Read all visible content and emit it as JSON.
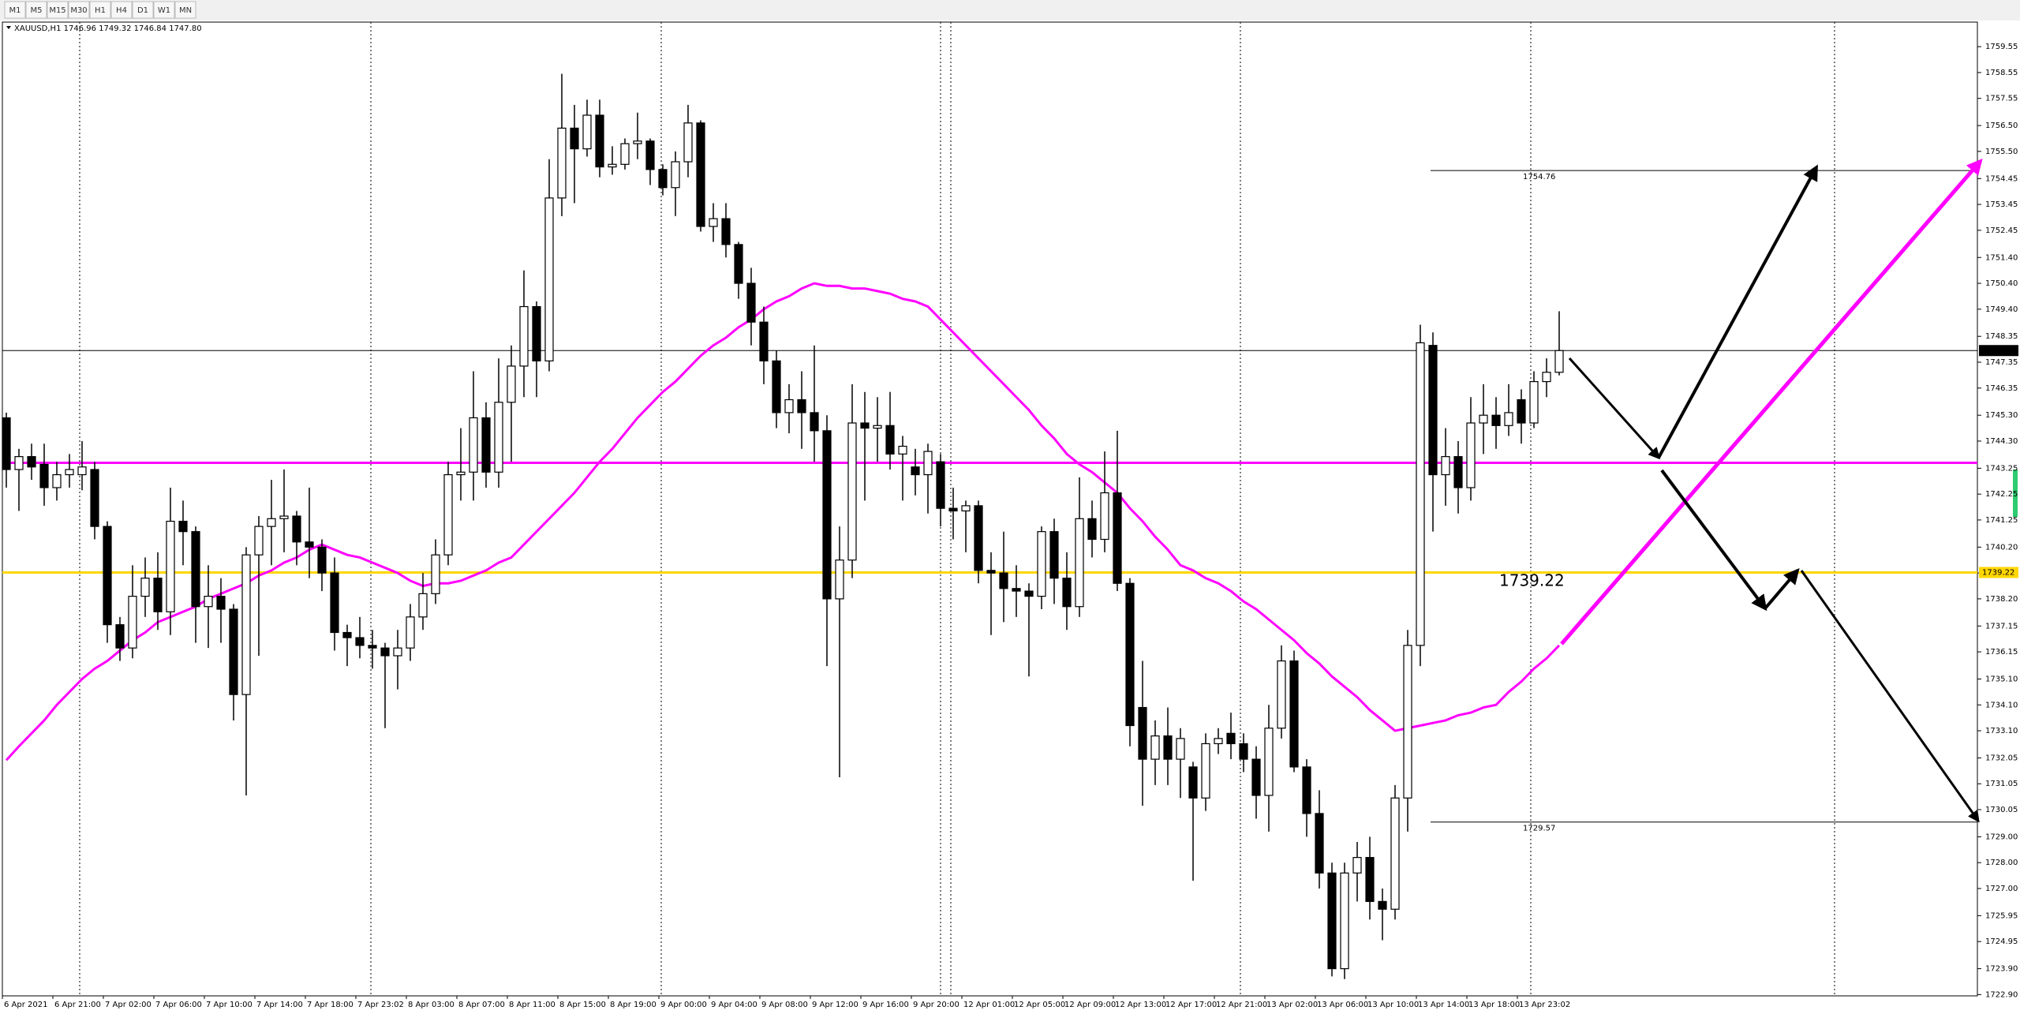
{
  "toolbar": [
    "M1",
    "M5",
    "M15",
    "M30",
    "H1",
    "H4",
    "D1",
    "W1",
    "MN"
  ],
  "chart_data": {
    "type": "candlestick",
    "title": "XAUUSD,H1  1746.96 1749.32 1746.84 1747.80",
    "up_color": "#ffffff",
    "down_color": "#000000",
    "categories": [
      "6 Apr 2021",
      null,
      null,
      null,
      "6 Apr 21:00",
      null,
      null,
      null,
      "7 Apr 02:00",
      null,
      null,
      null,
      "7 Apr 06:00",
      null,
      null,
      null,
      "7 Apr 10:00",
      null,
      null,
      null,
      "7 Apr 14:00",
      null,
      null,
      null,
      "7 Apr 18:00",
      null,
      null,
      null,
      "7 Apr 23:02",
      null,
      null,
      null,
      "8 Apr 03:00",
      null,
      null,
      null,
      "8 Apr 07:00",
      null,
      null,
      null,
      "8 Apr 11:00",
      null,
      null,
      null,
      "8 Apr 15:00",
      null,
      null,
      null,
      "8 Apr 19:00",
      null,
      null,
      null,
      "9 Apr 00:00",
      null,
      null,
      null,
      "9 Apr 04:00",
      null,
      null,
      null,
      "9 Apr 08:00",
      null,
      null,
      null,
      "9 Apr 12:00",
      null,
      null,
      null,
      "9 Apr 16:00",
      null,
      null,
      null,
      "9 Apr 20:00",
      null,
      null,
      null,
      "12 Apr 01:00",
      null,
      null,
      null,
      "12 Apr 05:00",
      null,
      null,
      null,
      "12 Apr 09:00",
      null,
      null,
      null,
      "12 Apr 13:00",
      null,
      null,
      null,
      "12 Apr 17:00",
      null,
      null,
      null,
      "12 Apr 21:00",
      null,
      null,
      null,
      "13 Apr 02:00",
      null,
      null,
      null,
      "13 Apr 06:00",
      null,
      null,
      null,
      "13 Apr 10:00",
      null,
      null,
      null,
      "13 Apr 14:00",
      null,
      null,
      null,
      "13 Apr 18:00",
      null,
      null,
      null,
      "13 Apr 23:02",
      null,
      null,
      null
    ],
    "ohlc": [
      [
        1745.2,
        1745.4,
        1742.5,
        1743.2
      ],
      [
        1743.2,
        1744.0,
        1741.6,
        1743.7
      ],
      [
        1743.7,
        1744.2,
        1742.8,
        1743.3
      ],
      [
        1743.4,
        1744.2,
        1741.8,
        1742.5
      ],
      [
        1742.5,
        1743.5,
        1742.0,
        1743.0
      ],
      [
        1743.0,
        1743.8,
        1742.5,
        1743.2
      ],
      [
        1743.0,
        1744.3,
        1742.4,
        1743.3
      ],
      [
        1743.2,
        1743.5,
        1740.5,
        1741.0
      ],
      [
        1741.0,
        1741.2,
        1736.5,
        1737.2
      ],
      [
        1737.2,
        1737.5,
        1735.8,
        1736.3
      ],
      [
        1736.3,
        1739.5,
        1735.9,
        1738.3
      ],
      [
        1738.3,
        1739.8,
        1737.5,
        1739.0
      ],
      [
        1739.0,
        1740.0,
        1737.0,
        1737.7
      ],
      [
        1737.7,
        1742.5,
        1736.8,
        1741.2
      ],
      [
        1741.2,
        1742.0,
        1739.5,
        1740.8
      ],
      [
        1740.8,
        1741.0,
        1736.5,
        1737.9
      ],
      [
        1737.9,
        1739.5,
        1736.3,
        1738.3
      ],
      [
        1738.3,
        1739.0,
        1736.5,
        1737.8
      ],
      [
        1737.8,
        1738.0,
        1733.5,
        1734.5
      ],
      [
        1734.5,
        1740.2,
        1730.6,
        1739.9
      ],
      [
        1739.9,
        1741.4,
        1736.0,
        1741.0
      ],
      [
        1741.0,
        1742.8,
        1739.5,
        1741.3
      ],
      [
        1741.3,
        1743.2,
        1740.0,
        1741.4
      ],
      [
        1741.4,
        1741.6,
        1739.5,
        1740.4
      ],
      [
        1740.4,
        1742.5,
        1739.0,
        1740.2
      ],
      [
        1740.2,
        1740.5,
        1738.5,
        1739.2
      ],
      [
        1739.2,
        1739.8,
        1736.2,
        1736.9
      ],
      [
        1736.9,
        1737.2,
        1735.6,
        1736.7
      ],
      [
        1736.7,
        1737.5,
        1735.9,
        1736.4
      ],
      [
        1736.4,
        1737.0,
        1735.5,
        1736.3
      ],
      [
        1736.3,
        1736.5,
        1733.2,
        1736.0
      ],
      [
        1736.0,
        1737.0,
        1734.7,
        1736.3
      ],
      [
        1736.3,
        1738.0,
        1735.8,
        1737.5
      ],
      [
        1737.5,
        1739.2,
        1737.0,
        1738.4
      ],
      [
        1738.4,
        1740.5,
        1738.0,
        1739.9
      ],
      [
        1739.9,
        1743.5,
        1739.5,
        1743.0
      ],
      [
        1743.0,
        1744.8,
        1742.0,
        1743.1
      ],
      [
        1743.1,
        1747.0,
        1742.0,
        1745.2
      ],
      [
        1745.2,
        1745.8,
        1742.5,
        1743.1
      ],
      [
        1743.1,
        1747.5,
        1742.5,
        1745.8
      ],
      [
        1745.8,
        1748.0,
        1743.5,
        1747.2
      ],
      [
        1747.2,
        1750.9,
        1746.0,
        1749.5
      ],
      [
        1749.5,
        1749.7,
        1746.0,
        1747.4
      ],
      [
        1747.4,
        1755.2,
        1747.0,
        1753.7
      ],
      [
        1753.7,
        1758.5,
        1753.0,
        1756.4
      ],
      [
        1756.4,
        1757.3,
        1753.5,
        1755.6
      ],
      [
        1755.6,
        1757.5,
        1755.3,
        1756.9
      ],
      [
        1756.9,
        1757.5,
        1754.5,
        1754.9
      ],
      [
        1754.9,
        1755.7,
        1754.6,
        1755.0
      ],
      [
        1755.0,
        1756.0,
        1754.8,
        1755.8
      ],
      [
        1755.8,
        1757.0,
        1755.2,
        1755.9
      ],
      [
        1755.9,
        1756.0,
        1754.2,
        1754.8
      ],
      [
        1754.8,
        1755.0,
        1753.8,
        1754.1
      ],
      [
        1754.1,
        1755.5,
        1753.0,
        1755.1
      ],
      [
        1755.1,
        1757.3,
        1754.5,
        1756.6
      ],
      [
        1756.6,
        1756.7,
        1752.4,
        1752.6
      ],
      [
        1752.6,
        1753.5,
        1752.0,
        1752.9
      ],
      [
        1752.9,
        1753.5,
        1751.4,
        1751.9
      ],
      [
        1751.9,
        1752.0,
        1749.8,
        1750.4
      ],
      [
        1750.4,
        1751.0,
        1748.0,
        1748.9
      ],
      [
        1748.9,
        1749.5,
        1746.5,
        1747.4
      ],
      [
        1747.4,
        1747.8,
        1744.8,
        1745.4
      ],
      [
        1745.4,
        1746.5,
        1744.6,
        1745.9
      ],
      [
        1745.9,
        1747.0,
        1744.0,
        1745.4
      ],
      [
        1745.4,
        1748.0,
        1743.5,
        1744.7
      ],
      [
        1744.7,
        1745.3,
        1735.6,
        1738.2
      ],
      [
        1738.2,
        1741.0,
        1731.3,
        1739.7
      ],
      [
        1739.7,
        1746.5,
        1739.0,
        1745.0
      ],
      [
        1745.0,
        1746.2,
        1742.0,
        1744.8
      ],
      [
        1744.8,
        1746.0,
        1743.5,
        1744.9
      ],
      [
        1744.9,
        1746.2,
        1743.2,
        1743.8
      ],
      [
        1743.8,
        1744.5,
        1742.0,
        1744.1
      ],
      [
        1743.3,
        1744.0,
        1742.2,
        1743.0
      ],
      [
        1743.0,
        1744.2,
        1741.5,
        1743.9
      ],
      [
        1743.5,
        1743.8,
        1741.0,
        1741.7
      ],
      [
        1741.7,
        1742.5,
        1740.5,
        1741.6
      ],
      [
        1741.6,
        1742.0,
        1740.0,
        1741.8
      ],
      [
        1741.8,
        1742.0,
        1738.8,
        1739.3
      ],
      [
        1739.3,
        1740.0,
        1736.8,
        1739.2
      ],
      [
        1739.2,
        1740.8,
        1737.3,
        1738.6
      ],
      [
        1738.6,
        1739.5,
        1737.5,
        1738.5
      ],
      [
        1738.5,
        1738.8,
        1735.2,
        1738.3
      ],
      [
        1738.3,
        1741.0,
        1737.8,
        1740.8
      ],
      [
        1740.8,
        1741.3,
        1738.0,
        1739.0
      ],
      [
        1739.0,
        1740.0,
        1737.0,
        1737.9
      ],
      [
        1737.9,
        1742.9,
        1737.5,
        1741.3
      ],
      [
        1741.3,
        1742.0,
        1739.8,
        1740.5
      ],
      [
        1740.5,
        1743.9,
        1740.0,
        1742.3
      ],
      [
        1742.3,
        1744.7,
        1738.5,
        1738.8
      ],
      [
        1738.8,
        1739.0,
        1732.5,
        1733.3
      ],
      [
        1734.0,
        1735.8,
        1730.2,
        1732.0
      ],
      [
        1732.0,
        1733.5,
        1731.0,
        1732.9
      ],
      [
        1732.9,
        1734.0,
        1731.0,
        1732.0
      ],
      [
        1732.0,
        1733.2,
        1730.5,
        1732.8
      ],
      [
        1731.7,
        1731.9,
        1727.3,
        1730.5
      ],
      [
        1730.5,
        1733.0,
        1730.0,
        1732.6
      ],
      [
        1732.6,
        1733.2,
        1732.2,
        1732.8
      ],
      [
        1733.0,
        1733.8,
        1732.0,
        1732.6
      ],
      [
        1732.6,
        1733.0,
        1731.5,
        1732.0
      ],
      [
        1732.0,
        1732.5,
        1729.7,
        1730.6
      ],
      [
        1730.6,
        1734.1,
        1729.2,
        1733.2
      ],
      [
        1733.2,
        1736.4,
        1732.8,
        1735.8
      ],
      [
        1735.8,
        1736.2,
        1731.5,
        1731.7
      ],
      [
        1731.7,
        1732.0,
        1729.0,
        1729.9
      ],
      [
        1729.9,
        1730.8,
        1727.0,
        1727.6
      ],
      [
        1727.6,
        1728.0,
        1723.6,
        1723.9
      ],
      [
        1723.9,
        1728.0,
        1723.5,
        1727.6
      ],
      [
        1727.6,
        1728.8,
        1726.5,
        1728.2
      ],
      [
        1728.2,
        1729.0,
        1725.8,
        1726.5
      ],
      [
        1726.5,
        1727.0,
        1725.0,
        1726.2
      ],
      [
        1726.2,
        1731.0,
        1725.8,
        1730.5
      ],
      [
        1730.5,
        1737.0,
        1729.2,
        1736.4
      ],
      [
        1736.4,
        1748.8,
        1735.6,
        1748.1
      ],
      [
        1748.0,
        1748.5,
        1740.8,
        1743.0
      ],
      [
        1743.0,
        1744.8,
        1741.8,
        1743.7
      ],
      [
        1743.7,
        1744.3,
        1741.5,
        1742.5
      ],
      [
        1742.5,
        1746.0,
        1742.0,
        1745.0
      ],
      [
        1745.0,
        1746.5,
        1743.8,
        1745.3
      ],
      [
        1745.3,
        1746.0,
        1744.0,
        1744.9
      ],
      [
        1744.9,
        1746.5,
        1744.5,
        1745.4
      ],
      [
        1745.9,
        1746.3,
        1744.2,
        1745.0
      ],
      [
        1745.0,
        1747.0,
        1744.8,
        1746.6
      ],
      [
        1746.6,
        1747.5,
        1746.0,
        1746.96
      ],
      [
        1746.96,
        1749.32,
        1746.84,
        1747.8
      ]
    ],
    "ma": {
      "color": "#ff00ff",
      "values": [
        1731.96,
        1732.5,
        1733.0,
        1733.5,
        1734.1,
        1734.6,
        1735.1,
        1735.5,
        1735.8,
        1736.2,
        1736.6,
        1736.9,
        1737.3,
        1737.5,
        1737.7,
        1737.9,
        1738.2,
        1738.4,
        1738.6,
        1738.8,
        1739.1,
        1739.3,
        1739.6,
        1739.8,
        1740.1,
        1740.3,
        1740.1,
        1739.9,
        1739.8,
        1739.6,
        1739.4,
        1739.2,
        1738.9,
        1738.7,
        1738.8,
        1738.8,
        1738.9,
        1739.1,
        1739.3,
        1739.6,
        1739.8,
        1740.3,
        1740.8,
        1741.3,
        1741.8,
        1742.3,
        1742.9,
        1743.5,
        1744.0,
        1744.6,
        1745.2,
        1745.7,
        1746.2,
        1746.6,
        1747.1,
        1747.6,
        1748.0,
        1748.3,
        1748.7,
        1749.0,
        1749.4,
        1749.7,
        1749.9,
        1750.2,
        1750.4,
        1750.3,
        1750.3,
        1750.2,
        1750.2,
        1750.1,
        1750.0,
        1749.8,
        1749.7,
        1749.5,
        1749.0,
        1748.5,
        1748.0,
        1747.5,
        1747.0,
        1746.5,
        1746.0,
        1745.5,
        1744.9,
        1744.4,
        1743.8,
        1743.4,
        1743.1,
        1742.7,
        1742.3,
        1741.7,
        1741.2,
        1740.6,
        1740.1,
        1739.5,
        1739.3,
        1739.0,
        1738.8,
        1738.5,
        1738.1,
        1737.8,
        1737.4,
        1737.0,
        1736.6,
        1736.1,
        1735.7,
        1735.2,
        1734.8,
        1734.4,
        1733.9,
        1733.5,
        1733.1,
        1733.2,
        1733.3,
        1733.4,
        1733.5,
        1733.7,
        1733.8,
        1734.0,
        1734.1,
        1734.6,
        1735.0,
        1735.5,
        1735.9,
        1736.4
      ]
    },
    "hlines": [
      {
        "value": 1747.8,
        "label": "1747.80",
        "color": "#000000",
        "tag": true
      },
      {
        "value": 1743.46,
        "color": "#ff00ff",
        "tag": false
      },
      {
        "value": 1739.22,
        "color": "#ffd700",
        "tag": true
      }
    ],
    "levels": [
      1754.76,
      1729.57
    ],
    "ylim": [
      1722.85,
      1760.5
    ],
    "yticks": [
      1759.55,
      1758.55,
      1757.55,
      {
        "value": 1756.5,
        "label": "1756.50"
      },
      {
        "value": 1755.5,
        "label": "1755.50"
      },
      1754.45,
      1753.45,
      1752.45,
      {
        "value": 1751.4,
        "label": "1751.40"
      },
      {
        "value": 1750.4,
        "label": "1750.40"
      },
      {
        "value": 1749.4,
        "label": "1749.40"
      },
      1748.35,
      1747.35,
      1746.35,
      {
        "value": 1745.3,
        "label": "1745.30"
      },
      {
        "value": 1744.3,
        "label": "1744.30"
      },
      1743.25,
      1742.25,
      1741.25,
      {
        "value": 1740.2,
        "label": "1740.20"
      },
      {
        "value": 1739.2,
        "label": "1739.20"
      },
      {
        "value": 1738.2,
        "label": "1738.20"
      },
      1737.15,
      1736.15,
      {
        "value": 1735.1,
        "label": "1735.10"
      },
      {
        "value": 1734.1,
        "label": "1734.10"
      },
      {
        "value": 1733.1,
        "label": "1733.10"
      },
      1732.05,
      1731.05,
      1730.05,
      {
        "value": 1729,
        "label": "1729.00"
      },
      {
        "value": 1728,
        "label": "1728.00"
      },
      {
        "value": 1727,
        "label": "1727.00"
      },
      1725.95,
      1724.95,
      {
        "value": 1723.9,
        "label": "1723.90"
      },
      {
        "value": 1722.9,
        "label": "1722.90"
      }
    ]
  }
}
